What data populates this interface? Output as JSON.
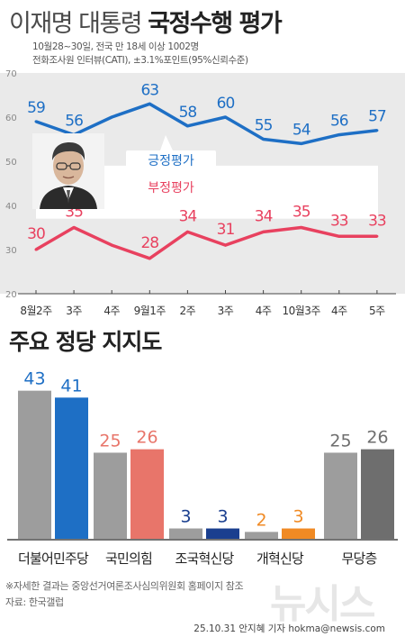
{
  "header": {
    "title_light": "이재명 대통령",
    "title_bold": "국정수행 평가",
    "meta_line1": "10월28~30일, 전국 만 18세 이상 1002명",
    "meta_line2": "전화조사원 인터뷰(CATI), ±3.1%포인트(95%신뢰수준)"
  },
  "bars_title": "주요 정당 지지도",
  "colors": {
    "positive": "#1e6fc5",
    "negative": "#e8415f",
    "band": "#eaeaea",
    "bar_gray": "#9d9d9d",
    "bar_dark": "#6e6e6e"
  },
  "chart_data": [
    {
      "type": "line",
      "categories": [
        "8월2주",
        "3주",
        "4주",
        "9월1주",
        "2주",
        "3주",
        "4주",
        "10월3주",
        "4주",
        "5주"
      ],
      "series": [
        {
          "name": "긍정평가",
          "values": [
            59,
            56,
            60,
            63,
            58,
            60,
            55,
            54,
            56,
            57
          ],
          "labels_shown": [
            59,
            56,
            null,
            63,
            58,
            60,
            55,
            54,
            56,
            57
          ]
        },
        {
          "name": "부정평가",
          "values": [
            30,
            35,
            31,
            28,
            34,
            31,
            34,
            35,
            33,
            33
          ],
          "labels_shown": [
            30,
            35,
            null,
            28,
            34,
            31,
            34,
            35,
            33,
            33
          ]
        }
      ],
      "yticks": [
        20,
        30,
        40,
        50,
        60,
        70
      ],
      "ylim": [
        20,
        70
      ],
      "grid": false,
      "legend": "inline"
    },
    {
      "type": "bar",
      "title": "주요 정당 지지도",
      "categories": [
        "더불어민주당",
        "국민의힘",
        "조국혁신당",
        "개혁신당",
        "무당층"
      ],
      "series": [
        {
          "values": [
            43,
            25,
            3,
            2,
            25
          ],
          "color": "#9d9d9d"
        },
        {
          "values": [
            41,
            26,
            3,
            3,
            26
          ],
          "colors": [
            "#1e6fc5",
            "#e8756a",
            "#1a3f8f",
            "#f08a24",
            "#6e6e6e"
          ]
        }
      ],
      "label_colors_prev": [
        "#1e6fc5",
        "#e8756a",
        "#1a3f8f",
        "#f08a24",
        "#6e6e6e"
      ],
      "ylim": [
        0,
        45
      ]
    }
  ],
  "footnote1": "※자세한 결과는 중앙선거여론조사심의위원회 홈페이지 참조",
  "footnote2": "자료: 한국갤럽",
  "credit": "25.10.31  안지혜 기자  hokma@newsis.com",
  "watermark": "뉴시스"
}
